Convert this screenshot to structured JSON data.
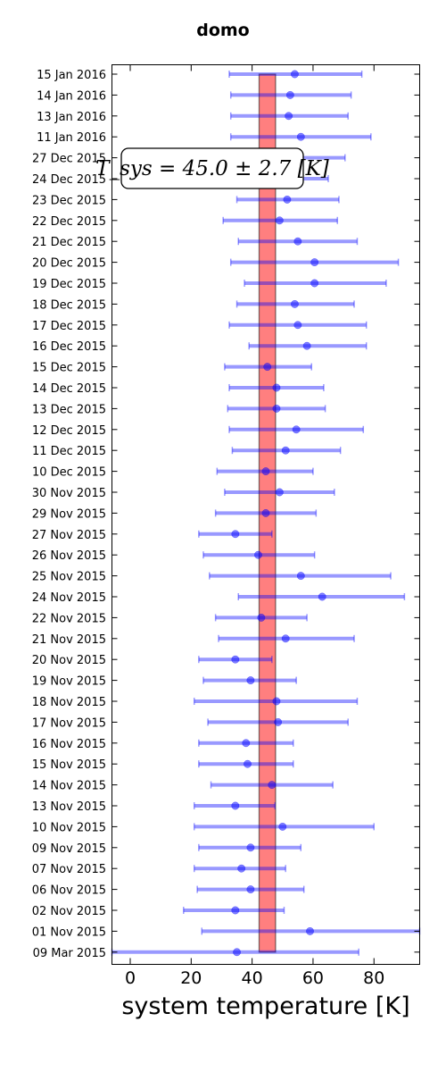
{
  "chart_data": {
    "type": "scatter",
    "title": "domo",
    "xlabel": "system temperature [K]",
    "ylabel": "",
    "xlim": [
      -6,
      95
    ],
    "xticks": [
      0,
      20,
      40,
      60,
      80
    ],
    "grid": false,
    "annotation": "T_sys = 45.0 ± 2.7 [K]",
    "band": {
      "center": 45.0,
      "error": 2.7,
      "color": "#ff0000"
    },
    "series_color": "#0000ff",
    "categories": [
      "15 Jan 2016",
      "14 Jan 2016",
      "13 Jan 2016",
      "11 Jan 2016",
      "27 Dec 2015",
      "24 Dec 2015",
      "23 Dec 2015",
      "22 Dec 2015",
      "21 Dec 2015",
      "20 Dec 2015",
      "19 Dec 2015",
      "18 Dec 2015",
      "17 Dec 2015",
      "16 Dec 2015",
      "15 Dec 2015",
      "14 Dec 2015",
      "13 Dec 2015",
      "12 Dec 2015",
      "11 Dec 2015",
      "10 Dec 2015",
      "30 Nov 2015",
      "29 Nov 2015",
      "27 Nov 2015",
      "26 Nov 2015",
      "25 Nov 2015",
      "24 Nov 2015",
      "22 Nov 2015",
      "21 Nov 2015",
      "20 Nov 2015",
      "19 Nov 2015",
      "18 Nov 2015",
      "17 Nov 2015",
      "16 Nov 2015",
      "15 Nov 2015",
      "14 Nov 2015",
      "13 Nov 2015",
      "10 Nov 2015",
      "09 Nov 2015",
      "07 Nov 2015",
      "06 Nov 2015",
      "02 Nov 2015",
      "01 Nov 2015",
      "09 Mar 2015"
    ],
    "points": [
      {
        "value": 54.0,
        "low": 32.5,
        "high": 76.0
      },
      {
        "value": 52.5,
        "low": 33.0,
        "high": 72.5
      },
      {
        "value": 52.0,
        "low": 33.0,
        "high": 71.5
      },
      {
        "value": 56.0,
        "low": 33.0,
        "high": 79.0
      },
      {
        "value": 50.0,
        "low": 29.5,
        "high": 70.5
      },
      {
        "value": 47.5,
        "low": 30.0,
        "high": 65.0
      },
      {
        "value": 51.5,
        "low": 35.0,
        "high": 68.5
      },
      {
        "value": 49.0,
        "low": 30.5,
        "high": 68.0
      },
      {
        "value": 55.0,
        "low": 35.5,
        "high": 74.5
      },
      {
        "value": 60.5,
        "low": 33.0,
        "high": 88.0
      },
      {
        "value": 60.5,
        "low": 37.5,
        "high": 84.0
      },
      {
        "value": 54.0,
        "low": 35.0,
        "high": 73.5
      },
      {
        "value": 55.0,
        "low": 32.5,
        "high": 77.5
      },
      {
        "value": 58.0,
        "low": 39.0,
        "high": 77.5
      },
      {
        "value": 45.0,
        "low": 31.0,
        "high": 59.5
      },
      {
        "value": 48.0,
        "low": 32.5,
        "high": 63.5
      },
      {
        "value": 48.0,
        "low": 32.0,
        "high": 64.0
      },
      {
        "value": 54.5,
        "low": 32.5,
        "high": 76.5
      },
      {
        "value": 51.0,
        "low": 33.5,
        "high": 69.0
      },
      {
        "value": 44.5,
        "low": 28.5,
        "high": 60.0
      },
      {
        "value": 49.0,
        "low": 31.0,
        "high": 67.0
      },
      {
        "value": 44.5,
        "low": 28.0,
        "high": 61.0
      },
      {
        "value": 34.5,
        "low": 22.5,
        "high": 46.5
      },
      {
        "value": 42.0,
        "low": 24.0,
        "high": 60.5
      },
      {
        "value": 56.0,
        "low": 26.0,
        "high": 85.5
      },
      {
        "value": 63.0,
        "low": 35.5,
        "high": 90.0
      },
      {
        "value": 43.0,
        "low": 28.0,
        "high": 58.0
      },
      {
        "value": 51.0,
        "low": 29.0,
        "high": 73.5
      },
      {
        "value": 34.5,
        "low": 22.5,
        "high": 46.5
      },
      {
        "value": 39.5,
        "low": 24.0,
        "high": 54.5
      },
      {
        "value": 48.0,
        "low": 21.0,
        "high": 74.5
      },
      {
        "value": 48.5,
        "low": 25.5,
        "high": 71.5
      },
      {
        "value": 38.0,
        "low": 22.5,
        "high": 53.5
      },
      {
        "value": 38.5,
        "low": 22.5,
        "high": 53.5
      },
      {
        "value": 46.5,
        "low": 26.5,
        "high": 66.5
      },
      {
        "value": 34.5,
        "low": 21.0,
        "high": 47.5
      },
      {
        "value": 50.0,
        "low": 21.0,
        "high": 80.0
      },
      {
        "value": 39.5,
        "low": 22.5,
        "high": 56.0
      },
      {
        "value": 36.5,
        "low": 21.0,
        "high": 51.0
      },
      {
        "value": 39.5,
        "low": 22.0,
        "high": 57.0
      },
      {
        "value": 34.5,
        "low": 17.5,
        "high": 50.5
      },
      {
        "value": 59.0,
        "low": 23.5,
        "high": 95.0
      },
      {
        "value": 35.0,
        "low": -6.0,
        "high": 75.0
      }
    ]
  }
}
